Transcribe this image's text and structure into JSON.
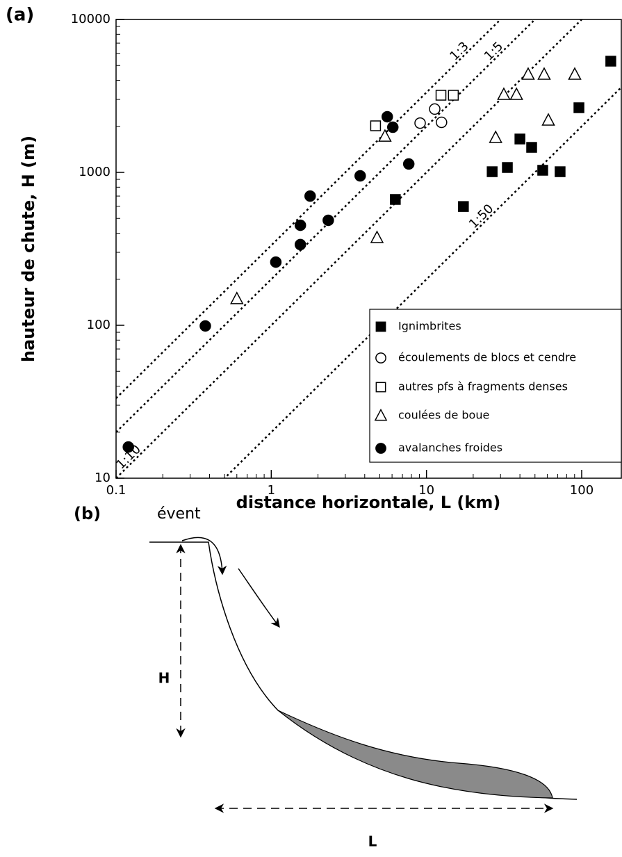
{
  "chart_data": {
    "type": "scatter",
    "panel_label": "(a)",
    "xlabel": "distance horizontale, L (km)",
    "ylabel": "hauteur de chute, H (m)",
    "xscale": "log",
    "yscale": "log",
    "xlim": [
      0.1,
      180
    ],
    "ylim": [
      10,
      10000
    ],
    "xticks": [
      0.1,
      1,
      10,
      100
    ],
    "yticks": [
      10,
      100,
      1000,
      10000
    ],
    "reference_lines": [
      "1:3",
      "1:5",
      "1:10",
      "1:50"
    ],
    "series": [
      {
        "name": "Ignimbrites",
        "marker": "square",
        "filled": true,
        "color": "#000000",
        "x": [
          6.3,
          17.3,
          26.5,
          33.2,
          40,
          47.6,
          56.1,
          72.6,
          96,
          154
        ],
        "y": [
          665,
          598,
          1010,
          1076,
          1653,
          1457,
          1032,
          1010,
          2647,
          5337
        ]
      },
      {
        "name": "écoulements de blocs et cendre",
        "marker": "circle",
        "filled": false,
        "color": "#000000",
        "x": [
          9.1,
          11.3,
          12.5
        ],
        "y": [
          2100,
          2594,
          2124
        ]
      },
      {
        "name": "autres pfs à fragments denses",
        "marker": "square",
        "filled": false,
        "color": "#000000",
        "x": [
          4.7,
          12.4,
          14.9
        ],
        "y": [
          2016,
          3195,
          3195
        ]
      },
      {
        "name": "coulées de boue",
        "marker": "triangle",
        "filled": false,
        "color": "#000000",
        "x": [
          0.6,
          4.8,
          5.4,
          27.9,
          31.5,
          38,
          45.2,
          57.3,
          61,
          90.2
        ],
        "y": [
          149,
          374,
          1722,
          1688,
          3229,
          3229,
          4375,
          4375,
          2193,
          4375
        ]
      },
      {
        "name": "avalanches froides",
        "marker": "circle",
        "filled": true,
        "color": "#000000",
        "x": [
          0.12,
          0.376,
          1.07,
          1.54,
          1.54,
          1.78,
          2.33,
          3.74,
          5.59,
          6.07,
          7.69
        ],
        "y": [
          16,
          99,
          259,
          337,
          451,
          700,
          486,
          949,
          2311,
          1974,
          1135
        ]
      }
    ]
  },
  "diagram": {
    "panel_label": "(b)",
    "vent": "évent",
    "height": "H",
    "length": "L"
  }
}
